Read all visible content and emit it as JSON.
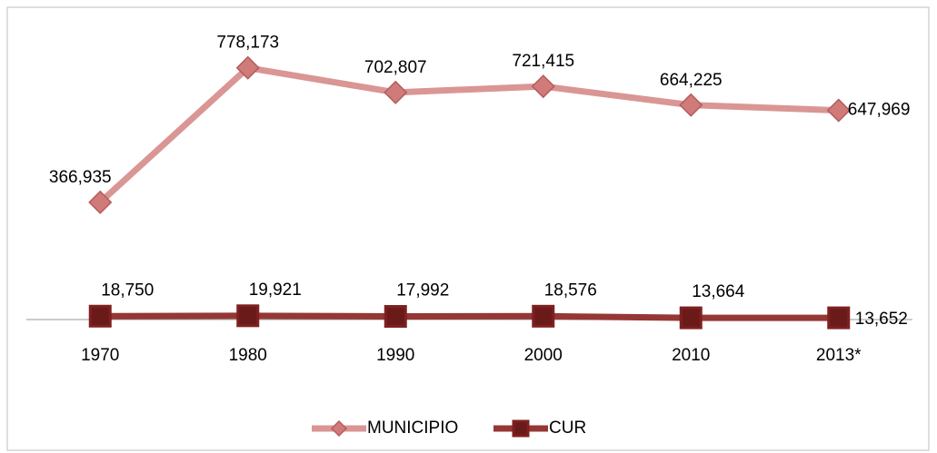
{
  "chart_data": {
    "type": "line",
    "categories": [
      "1970",
      "1980",
      "1990",
      "2000",
      "2010",
      "2013*"
    ],
    "series": [
      {
        "name": "MUNICIPIO",
        "color": "#d99694",
        "marker": "diamond",
        "values": [
          366935,
          778173,
          702807,
          721415,
          664225,
          647969
        ],
        "value_labels": [
          "366,935",
          "778,173",
          "702,807",
          "721,415",
          "664,225",
          "647,969"
        ]
      },
      {
        "name": "CUR",
        "color": "#953735",
        "marker": "square",
        "values": [
          18750,
          19921,
          17992,
          18576,
          13664,
          13652
        ],
        "value_labels": [
          "18,750",
          "19,921",
          "17,992",
          "18,576",
          "13,664",
          "13,652"
        ]
      }
    ],
    "ylim": [
      0,
      930000
    ],
    "legend": "bottom"
  }
}
